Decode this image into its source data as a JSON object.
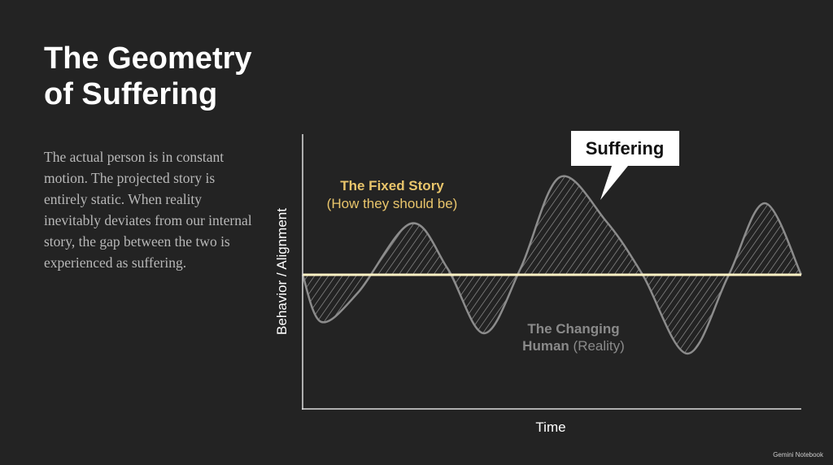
{
  "title": [
    "The Geometry",
    "of Suffering"
  ],
  "body": "The actual person is in constant motion. The projected story is entirely static. When reality inevitably deviates from our internal story, the gap between the two is experienced as suffering.",
  "diagram": {
    "callout": "Suffering",
    "fixed_story": {
      "label": "The Fixed Story",
      "note": "(How they should be)"
    },
    "changing_human": {
      "label": "The Changing Human",
      "note": "(Reality)"
    },
    "y_axis_label": "Behavior / Alignment",
    "x_axis_label": "Time"
  },
  "watermark": "Gemini Notebook"
}
